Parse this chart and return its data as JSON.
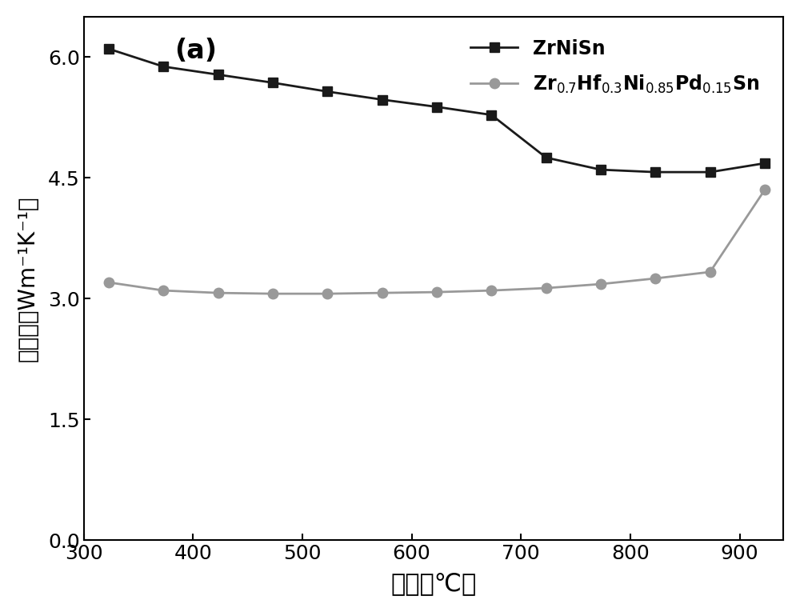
{
  "series1_x": [
    323,
    373,
    423,
    473,
    523,
    573,
    623,
    673,
    723,
    773,
    823,
    873,
    923
  ],
  "series1_y": [
    6.1,
    5.88,
    5.78,
    5.68,
    5.57,
    5.47,
    5.38,
    5.28,
    4.75,
    4.6,
    4.57,
    4.57,
    4.68
  ],
  "series2_x": [
    323,
    373,
    423,
    473,
    523,
    573,
    623,
    673,
    723,
    773,
    823,
    873,
    923
  ],
  "series2_y": [
    3.2,
    3.1,
    3.07,
    3.06,
    3.06,
    3.07,
    3.08,
    3.1,
    3.13,
    3.18,
    3.25,
    3.33,
    4.35
  ],
  "series1_color": "#1a1a1a",
  "series2_color": "#999999",
  "xlim": [
    300,
    940
  ],
  "ylim": [
    0,
    6.5
  ],
  "yticks": [
    0,
    1.5,
    3.0,
    4.5,
    6.0
  ],
  "xticks": [
    300,
    400,
    500,
    600,
    700,
    800,
    900
  ],
  "marker1": "s",
  "marker2": "o",
  "markersize1": 9,
  "markersize2": 9,
  "linewidth": 2.0
}
